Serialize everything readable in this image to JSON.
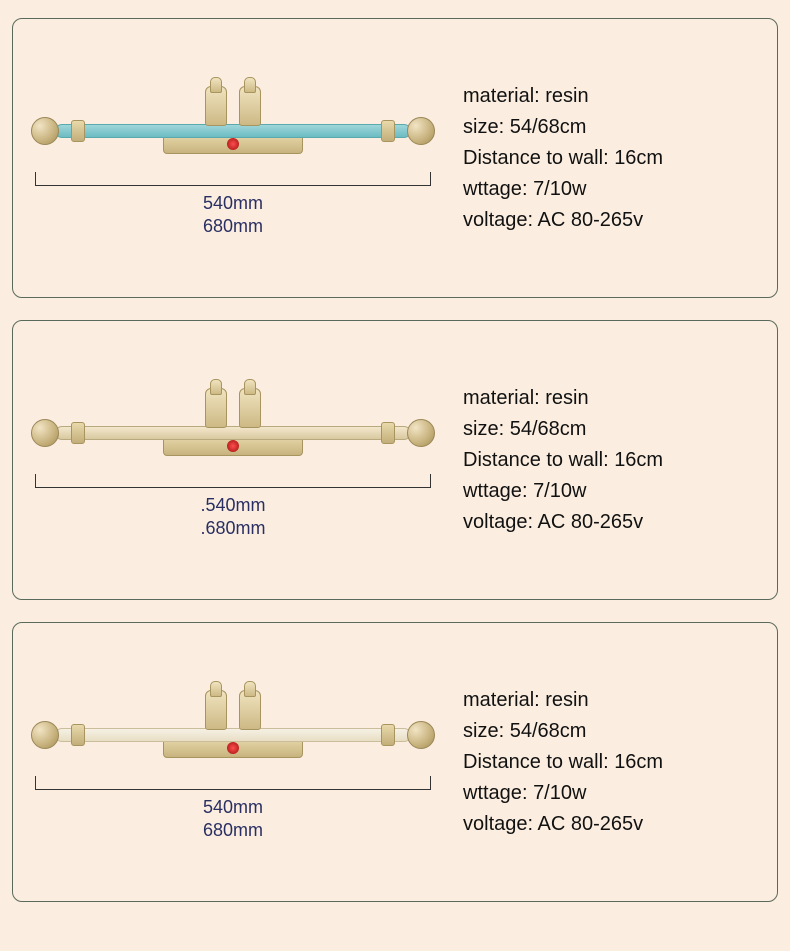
{
  "spec_labels": {
    "material": "material",
    "size": "size",
    "distance": "Distance to wall",
    "wattage": "wttage",
    "voltage": "voltage"
  },
  "products": [
    {
      "variant": "blue",
      "material": "resin",
      "size": "54/68cm",
      "distance_to_wall": "16cm",
      "wattage": "7/10w",
      "voltage": "AC 80-265v",
      "dim1": "540mm",
      "dim2": "680mm"
    },
    {
      "variant": "cream",
      "material": "resin",
      "size": "54/68cm",
      "distance_to_wall": "16cm",
      "wattage": "7/10w",
      "voltage": "AC 80-265v",
      "dim1": ".540mm",
      "dim2": ".680mm"
    },
    {
      "variant": "white",
      "material": "resin",
      "size": "54/68cm",
      "distance_to_wall": "16cm",
      "wattage": "7/10w",
      "voltage": "AC 80-265v",
      "dim1": "540mm",
      "dim2": "680mm"
    }
  ],
  "colors": {
    "page_bg": "#fbeee0",
    "card_border": "#5a6a5a",
    "text": "#111111",
    "dim_text": "#2a2f63",
    "blue_bar": "#6bbcc2",
    "cream_bar": "#d9c9a0",
    "white_bar": "#e8dec4",
    "gold": "#c7b27d",
    "jewel": "#ff4d4d"
  }
}
